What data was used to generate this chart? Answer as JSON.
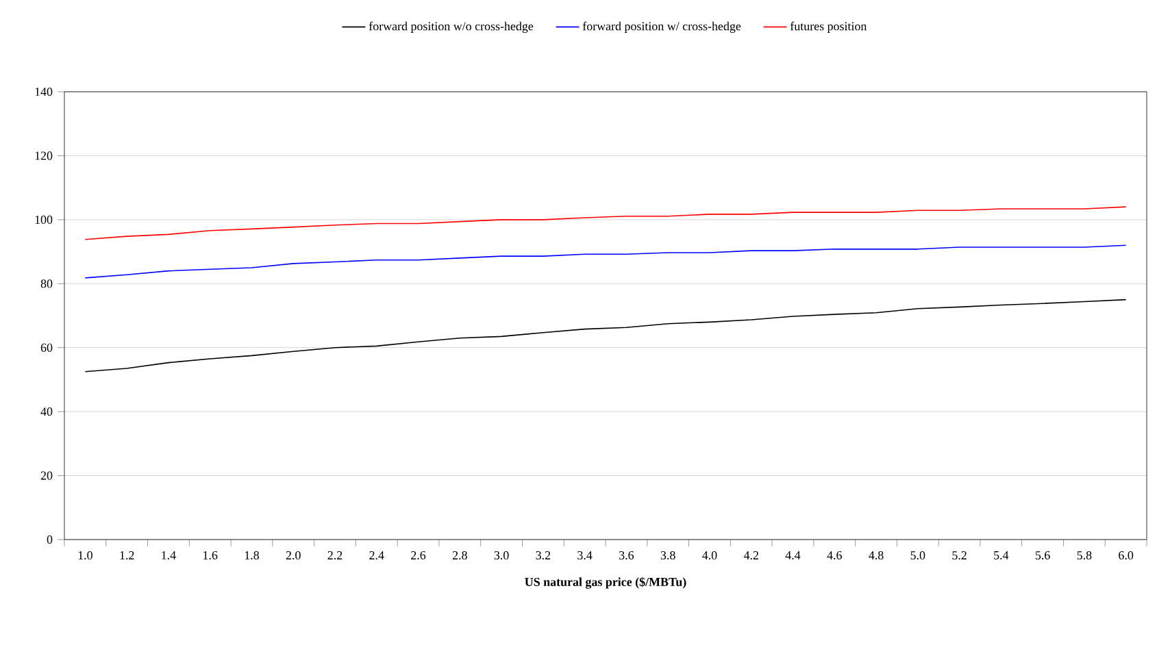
{
  "chart_data": {
    "type": "line",
    "xlabel": "US natural gas price ($/MBTu)",
    "categories": [
      "1.0",
      "1.2",
      "1.4",
      "1.6",
      "1.8",
      "2.0",
      "2.2",
      "2.4",
      "2.6",
      "2.8",
      "3.0",
      "3.2",
      "3.4",
      "3.6",
      "3.8",
      "4.0",
      "4.2",
      "4.4",
      "4.6",
      "4.8",
      "5.0",
      "5.2",
      "5.4",
      "5.6",
      "5.8",
      "6.0"
    ],
    "series": [
      {
        "name": "forward position w/o cross-hedge",
        "color": "#000000",
        "values": [
          52.5,
          53.5,
          55.3,
          56.5,
          57.5,
          58.8,
          60,
          60.5,
          61.8,
          63,
          63.5,
          64.7,
          65.8,
          66.3,
          67.5,
          68,
          68.7,
          69.8,
          70.4,
          70.9,
          72.2,
          72.7,
          73.3,
          73.8,
          74.4,
          75
        ]
      },
      {
        "name": "forward position w/ cross-hedge",
        "color": "#0000ff",
        "values": [
          81.8,
          82.8,
          84,
          84.5,
          85,
          86.3,
          86.8,
          87.4,
          87.4,
          88,
          88.6,
          88.6,
          89.2,
          89.2,
          89.7,
          89.7,
          90.3,
          90.3,
          90.8,
          90.8,
          90.8,
          91.4,
          91.4,
          91.4,
          91.4,
          92
        ]
      },
      {
        "name": "futures position",
        "color": "#ff0000",
        "values": [
          93.8,
          94.8,
          95.4,
          96.6,
          97.1,
          97.7,
          98.3,
          98.8,
          98.8,
          99.4,
          100,
          100,
          100.6,
          101.1,
          101.1,
          101.7,
          101.7,
          102.3,
          102.3,
          102.3,
          102.9,
          102.9,
          103.4,
          103.4,
          103.4,
          104
        ]
      }
    ],
    "ylim": [
      0,
      140
    ],
    "yticks": [
      0,
      20,
      40,
      60,
      80,
      100,
      120,
      140
    ],
    "grid": "y",
    "legend": "top",
    "marker": "none",
    "line_style": "solid"
  }
}
